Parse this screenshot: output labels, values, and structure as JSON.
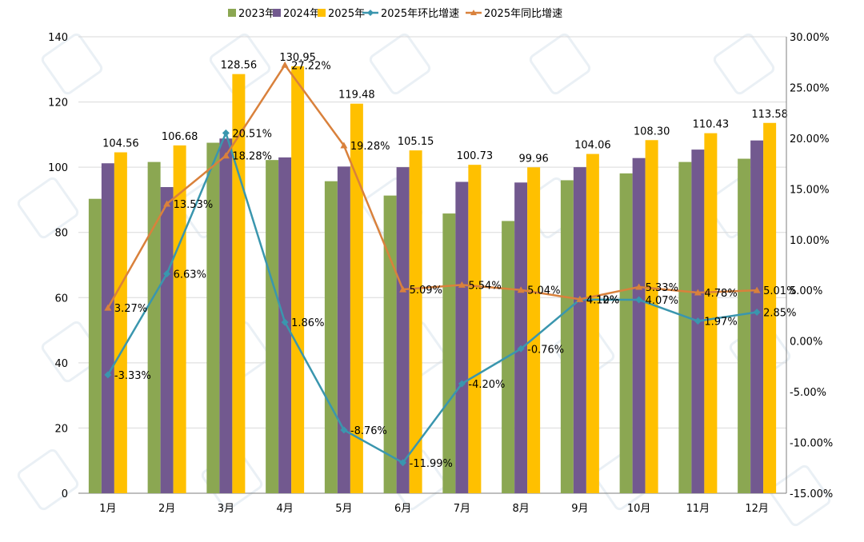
{
  "chart_data": {
    "type": "bar+line",
    "categories": [
      "1月",
      "2月",
      "3月",
      "4月",
      "5月",
      "6月",
      "7月",
      "8月",
      "9月",
      "10月",
      "11月",
      "12月"
    ],
    "ylim": [
      0,
      140
    ],
    "y_ticks": [
      "0",
      "20",
      "40",
      "60",
      "80",
      "100",
      "120",
      "140"
    ],
    "y2lim": [
      -15,
      30
    ],
    "y2_ticks": [
      "-15.00%",
      "-10.00%",
      "-5.00%",
      "0.00%",
      "5.00%",
      "10.00%",
      "15.00%",
      "20.00%",
      "25.00%",
      "30.00%"
    ],
    "grid": true,
    "legend_position": "top",
    "series": [
      {
        "name": "2023年",
        "type": "bar",
        "axis": "left",
        "color": "#8BA752",
        "values": [
          90.3,
          101.6,
          107.5,
          102.2,
          95.7,
          91.3,
          85.8,
          83.5,
          96.0,
          98.1,
          101.6,
          102.6
        ]
      },
      {
        "name": "2024年",
        "type": "bar",
        "axis": "left",
        "color": "#72598F",
        "values": [
          101.2,
          93.9,
          108.8,
          103.0,
          100.2,
          100.0,
          95.5,
          95.3,
          100.0,
          102.8,
          105.4,
          108.2
        ]
      },
      {
        "name": "2025年",
        "type": "bar",
        "axis": "left",
        "color": "#FFC000",
        "values": [
          104.56,
          106.68,
          128.56,
          130.95,
          119.48,
          105.15,
          100.73,
          99.96,
          104.06,
          108.3,
          110.43,
          113.58
        ],
        "labels": [
          "104.56",
          "106.68",
          "128.56",
          "130.95",
          "119.48",
          "105.15",
          "100.73",
          "99.96",
          "104.06",
          "108.30",
          "110.43",
          "113.58"
        ]
      },
      {
        "name": "2025年环比增速",
        "type": "line",
        "axis": "right",
        "color": "#3A96AE",
        "marker": "diamond",
        "values": [
          -3.33,
          6.63,
          20.51,
          1.86,
          -8.76,
          -11.99,
          -4.2,
          -0.76,
          4.1,
          4.07,
          1.97,
          2.85
        ],
        "labels": [
          "-3.33%",
          "6.63%",
          "20.51%",
          "1.86%",
          "-8.76%",
          "-11.99%",
          "-4.20%",
          "-0.76%",
          "4.10%",
          "4.07%",
          "1.97%",
          "2.85%"
        ]
      },
      {
        "name": "2025年同比增速",
        "type": "line",
        "axis": "right",
        "color": "#D9813C",
        "marker": "triangle",
        "values": [
          3.27,
          13.53,
          18.28,
          27.22,
          19.28,
          5.09,
          5.54,
          5.04,
          4.12,
          5.33,
          4.78,
          5.01
        ],
        "labels": [
          "3.27%",
          "13.53%",
          "18.28%",
          "27.22%",
          "19.28%",
          "5.09%",
          "5.54%",
          "5.04%",
          "4.12%",
          "5.33%",
          "4.78%",
          "5.01%"
        ]
      }
    ]
  }
}
